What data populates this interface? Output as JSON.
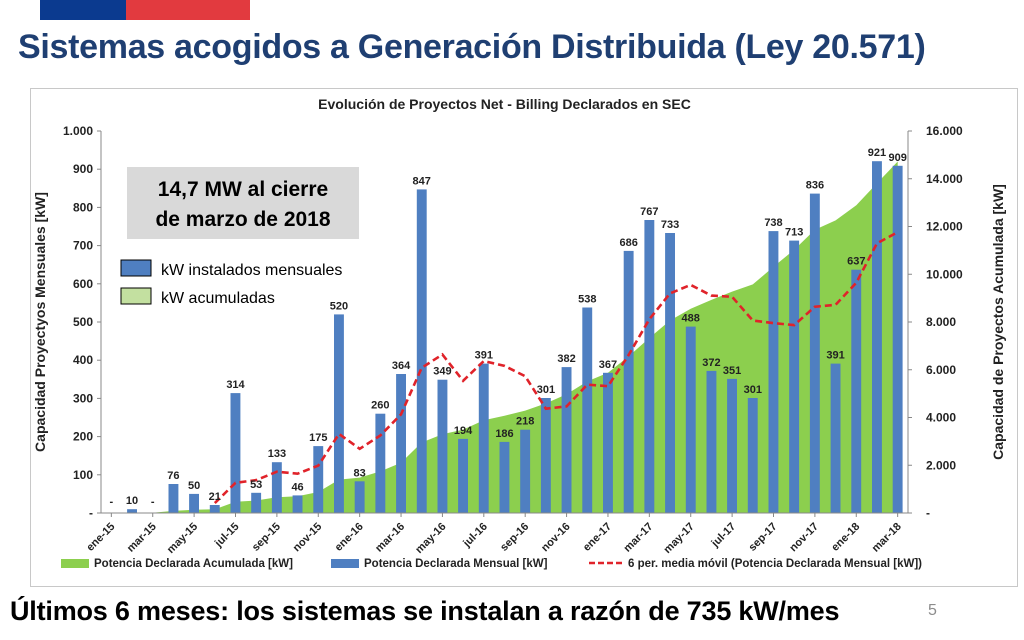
{
  "header": {
    "title": "Sistemas acogidos a Generación Distribuida (Ley 20.571)"
  },
  "footer": {
    "text": "Últimos 6 meses: los sistemas se instalan a razón de 735 kW/mes",
    "page_number": "5"
  },
  "colors": {
    "flag_blue": "#0b3a8f",
    "flag_red": "#e23a3f",
    "title": "#1f3f72",
    "bar": "#4f7fc1",
    "area": "#8ccf4e",
    "moving_average": "#e0232a"
  },
  "chart_data": {
    "type": "bar",
    "title": "Evolución de Proyectos Net - Billing Declarados en SEC",
    "ylabel": "Capacidad Proyectyos Mensuales [kW]",
    "y2label": "Capacidad de Proyectos Acumulada [kW]",
    "ylim": [
      0,
      1000
    ],
    "y2lim": [
      0,
      16000
    ],
    "y_ticks": [
      "-",
      "100",
      "200",
      "300",
      "400",
      "500",
      "600",
      "700",
      "800",
      "900",
      "1.000"
    ],
    "y2_ticks": [
      "-",
      "2.000",
      "4.000",
      "6.000",
      "8.000",
      "10.000",
      "12.000",
      "14.000",
      "16.000"
    ],
    "x_tick_labels": [
      "ene-15",
      "mar-15",
      "may-15",
      "jul-15",
      "sep-15",
      "nov-15",
      "ene-16",
      "mar-16",
      "may-16",
      "jul-16",
      "sep-16",
      "nov-16",
      "ene-17",
      "mar-17",
      "may-17",
      "jul-17",
      "sep-17",
      "nov-17",
      "ene-18",
      "mar-18"
    ],
    "grid": false,
    "annotation": "14,7 MW al cierre de marzo de 2018",
    "inner_legend": [
      "kW instalados mensuales",
      "kW acumuladas"
    ],
    "legend": [
      "Potencia Declarada Acumulada [kW]",
      "Potencia Declarada Mensual [kW]",
      "6 per. media móvil (Potencia Declarada Mensual [kW])"
    ],
    "legend_placement": "bottom",
    "series": [
      {
        "name": "Potencia Declarada Mensual [kW]",
        "type": "bar",
        "axis": "left",
        "values": [
          0,
          10,
          0,
          76,
          50,
          21,
          314,
          53,
          133,
          46,
          175,
          520,
          83,
          260,
          364,
          847,
          349,
          194,
          391,
          186,
          218,
          301,
          382,
          538,
          367,
          686,
          767,
          733,
          488,
          372,
          351,
          301,
          738,
          713,
          836,
          391,
          637,
          921,
          909
        ],
        "labels": [
          "-",
          "10",
          "-",
          "76",
          "50",
          "21",
          "314",
          "53",
          "133",
          "46",
          "175",
          "520",
          "83",
          "260",
          "364",
          "847",
          "349",
          "194",
          "391",
          "186",
          "218",
          "301",
          "382",
          "538",
          "367",
          "686",
          "767",
          "733",
          "488",
          "372",
          "351",
          "301",
          "738",
          "713",
          "836",
          "391",
          "637",
          "921",
          "909"
        ]
      },
      {
        "name": "Potencia Declarada Acumulada [kW]",
        "type": "area",
        "axis": "right",
        "values": [
          0,
          10,
          10,
          86,
          136,
          157,
          471,
          524,
          657,
          703,
          878,
          1398,
          1481,
          1741,
          2105,
          2952,
          3301,
          3495,
          3886,
          4072,
          4290,
          4591,
          4973,
          5511,
          5878,
          6564,
          7331,
          8064,
          8552,
          8924,
          9275,
          9576,
          10314,
          11027,
          11863,
          12254,
          12891,
          13812,
          14721
        ]
      },
      {
        "name": "6 per. media móvil (Potencia Declarada Mensual [kW])",
        "type": "line",
        "axis": "left",
        "values": [
          null,
          null,
          null,
          null,
          null,
          26,
          79,
          86,
          108,
          103,
          124,
          207,
          168,
          203,
          258,
          380,
          415,
          346,
          398,
          385,
          358,
          273,
          279,
          336,
          332,
          414,
          507,
          575,
          597,
          569,
          566,
          504,
          497,
          492,
          540,
          545,
          603,
          706,
          735
        ]
      }
    ]
  }
}
